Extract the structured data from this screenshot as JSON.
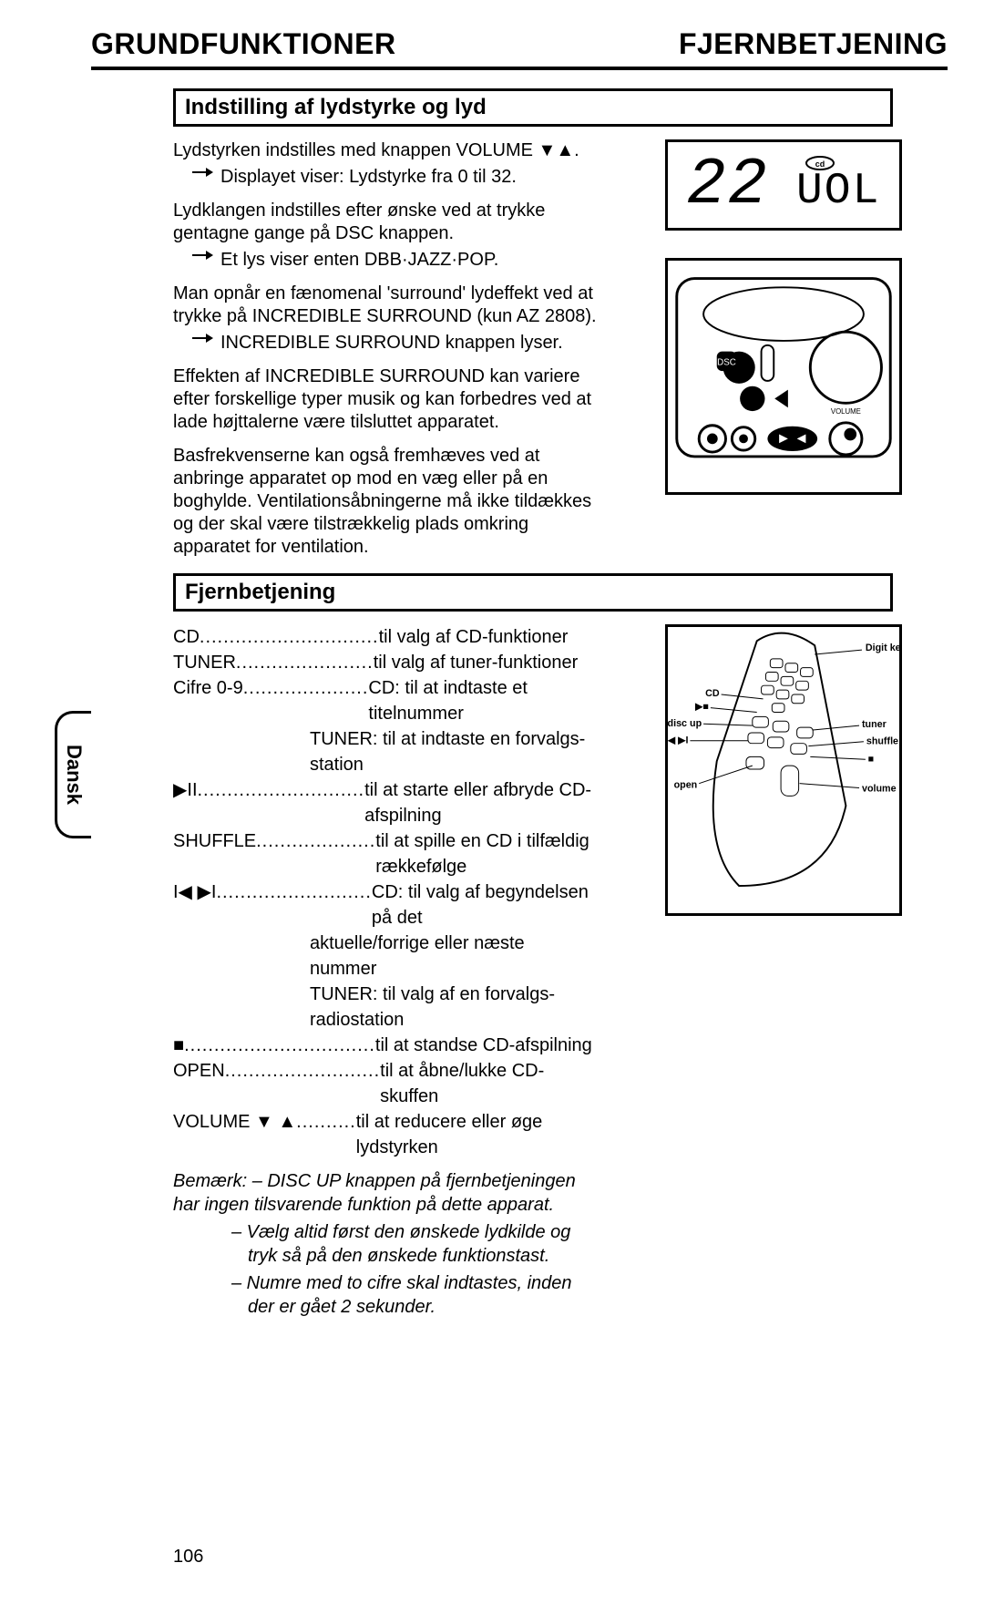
{
  "header": {
    "left": "GRUNDFUNKTIONER",
    "right": "FJERNBETJENING"
  },
  "section1": {
    "title": "Indstilling af lydstyrke og lyd",
    "p1": "Lydstyrken indstilles med knappen VOLUME ▼▲.",
    "p1b": "Displayet viser: Lydstyrke fra 0 til 32.",
    "p2": "Lydklangen indstilles efter ønske ved at trykke gentagne gange på DSC knappen.",
    "p2b": "Et lys viser enten DBB·JAZZ·POP.",
    "p3": "Man opnår en fænomenal 'surround' lydeffekt ved at trykke på INCREDIBLE SURROUND (kun AZ 2808).",
    "p3b": "INCREDIBLE SURROUND knappen lyser.",
    "p4": "Effekten af INCREDIBLE SURROUND kan variere efter forskellige typer musik og kan forbedres ved at lade højttalerne være tilsluttet apparatet.",
    "p5": "Basfrekvenserne kan også fremhæves ved at anbringe apparatet op mod en væg eller på en boghylde. Ventilationsåbningerne må ikke tildækkes og der skal være tilstrækkelig plads omkring apparatet for ventilation."
  },
  "display": {
    "value": "22",
    "label": "UOL",
    "icon": "cd"
  },
  "section2": {
    "title": "Fjernbetjening",
    "rows": [
      {
        "key": "CD",
        "dots": "..............................",
        "desc": "til valg af CD-funktioner"
      },
      {
        "key": "TUNER",
        "dots": ".......................",
        "desc": "til valg af tuner-funktioner"
      },
      {
        "key": "Cifre 0-9",
        "dots": ".....................",
        "desc": "CD: til at indtaste et titelnummer"
      },
      {
        "cont": "TUNER: til at indtaste en forvalgs-station"
      },
      {
        "key": "▶II",
        "dots": "............................",
        "desc": "til at starte eller afbryde CD-afspilning"
      },
      {
        "key": "SHUFFLE",
        "dots": "....................",
        "desc": "til at spille en CD i tilfældig rækkefølge"
      },
      {
        "key": "I◀ ▶I",
        "dots": "..........................",
        "desc": "CD: til valg af begyndelsen på det"
      },
      {
        "cont": "aktuelle/forrige eller næste nummer"
      },
      {
        "cont": "TUNER: til valg af en forvalgs-radiostation"
      },
      {
        "key": "■",
        "dots": "................................",
        "desc": "til at standse CD-afspilning"
      },
      {
        "key": "OPEN",
        "dots": "..........................",
        "desc": "til at åbne/lukke CD-skuffen"
      },
      {
        "key": "VOLUME ▼ ▲",
        "dots": "..........",
        "desc": "til at reducere eller øge lydstyrken"
      }
    ],
    "note_label": "Bemærk:",
    "notes": [
      "– DISC UP knappen på fjernbetjeningen har ingen tilsvarende funktion på dette apparat.",
      "– Vælg altid først den ønskede lydkilde og tryk så på den ønskede funktionstast.",
      "– Numre med to cifre skal indtastes, inden der er gået 2 sekunder."
    ]
  },
  "remote_labels": {
    "digit": "Digit keys",
    "cd": "CD",
    "discup": "disc up",
    "prevnext": "I◀ ▶I",
    "open": "open",
    "tuner": "tuner",
    "shuffle": "shuffle",
    "stop": "■",
    "volume": "volume ▼▲",
    "playpause": "▶■"
  },
  "language": "Dansk",
  "page_number": "106",
  "colors": {
    "text": "#000000",
    "bg": "#ffffff",
    "border": "#000000"
  }
}
